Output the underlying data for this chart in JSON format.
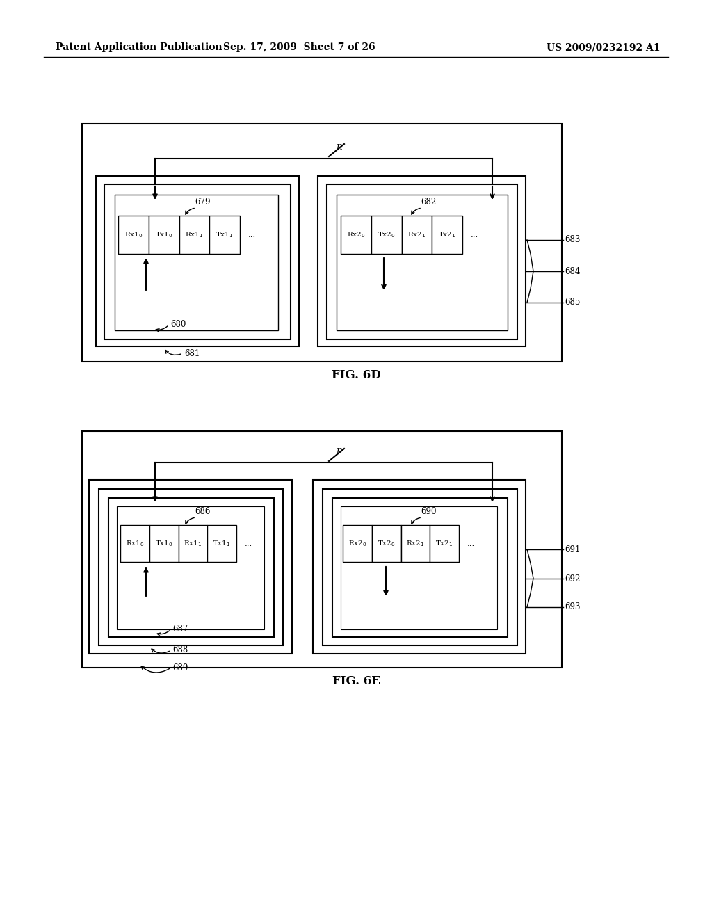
{
  "bg_color": "#ffffff",
  "header_left": "Patent Application Publication",
  "header_mid": "Sep. 17, 2009  Sheet 7 of 26",
  "header_right": "US 2009/0232192 A1",
  "fig6d_label": "FIG. 6D",
  "fig6e_label": "FIG. 6E"
}
